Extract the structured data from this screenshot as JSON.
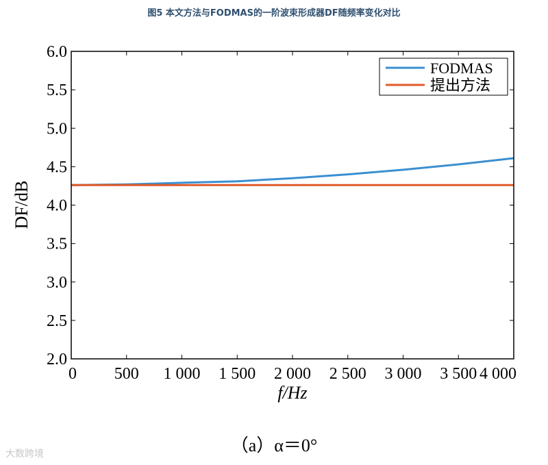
{
  "figure": {
    "title": "图5 本文方法与FODMAS的一阶波束形成器DF随频率变化对比",
    "caption": "（a）α＝0°",
    "watermark": "大数跨境"
  },
  "chart_data": {
    "type": "line",
    "xlabel": "f/Hz",
    "ylabel": "DF/dB",
    "xlim": [
      0,
      4000
    ],
    "ylim": [
      2.0,
      6.0
    ],
    "xticks": [
      0,
      500,
      1000,
      1500,
      2000,
      2500,
      3000,
      3500,
      4000
    ],
    "xtick_labels": [
      "0",
      "500",
      "1 000",
      "1 500",
      "2 000",
      "2 500",
      "3 000",
      "3 500",
      "4 000"
    ],
    "yticks": [
      2.0,
      2.5,
      3.0,
      3.5,
      4.0,
      4.5,
      5.0,
      5.5,
      6.0
    ],
    "ytick_labels": [
      "2.0",
      "2.5",
      "3.0",
      "3.5",
      "4.0",
      "4.5",
      "5.0",
      "5.5",
      "6.0"
    ],
    "grid": false,
    "legend_position": "top-right",
    "series": [
      {
        "name": "FODMAS",
        "color": "#3a8fd0",
        "x": [
          0,
          500,
          1000,
          1500,
          2000,
          2500,
          3000,
          3500,
          4000
        ],
        "y": [
          4.26,
          4.27,
          4.29,
          4.31,
          4.35,
          4.4,
          4.46,
          4.53,
          4.61
        ]
      },
      {
        "name": "提出方法",
        "color": "#e05a2a",
        "x": [
          0,
          500,
          1000,
          1500,
          2000,
          2500,
          3000,
          3500,
          4000
        ],
        "y": [
          4.26,
          4.26,
          4.26,
          4.26,
          4.26,
          4.26,
          4.26,
          4.26,
          4.26
        ]
      }
    ]
  }
}
